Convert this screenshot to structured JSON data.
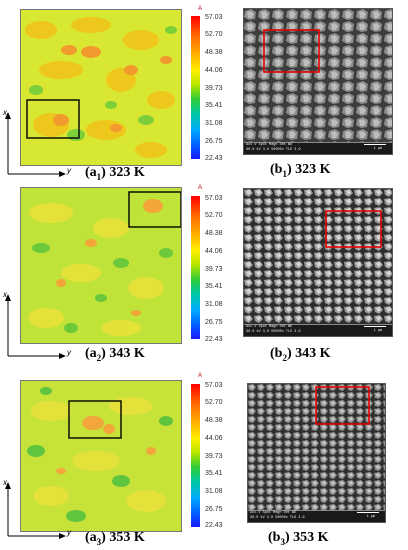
{
  "colorbar": {
    "unit": "A",
    "ticks": [
      "57.03",
      "52.70",
      "48.38",
      "44.06",
      "39.73",
      "35.41",
      "31.08",
      "26.75",
      "22.43"
    ]
  },
  "axes": {
    "x_label": "x",
    "y_label": "y"
  },
  "panels": [
    {
      "map_caption_main": "(a",
      "map_caption_sub": "1",
      "map_caption_temp": ") 323 K",
      "sem_caption_main": "(b",
      "sem_caption_sub": "1",
      "sem_caption_temp": ") 323 K",
      "sem_info_line1": "Acc.V  Spot Magn   Det   WD",
      "sem_info_line2": "30.0 kV  3.0   50000x TLD  3.9",
      "sem_scale": "1 µm"
    },
    {
      "map_caption_main": "(a",
      "map_caption_sub": "2",
      "map_caption_temp": ") 343 K",
      "sem_caption_main": "(b",
      "sem_caption_sub": "2",
      "sem_caption_temp": ") 343 K",
      "sem_info_line1": "Acc.V  Spot Magn   Det   WD",
      "sem_info_line2": "30.0 kV  3.0   50000x TLD  3.9",
      "sem_scale": "1 µm"
    },
    {
      "map_caption_main": "(a",
      "map_caption_sub": "3",
      "map_caption_temp": ") 353 K",
      "sem_caption_main": "(b",
      "sem_caption_sub": "3",
      "sem_caption_temp": ") 353 K",
      "sem_info_line1": "Acc.V  Spot Magn   Det   WD",
      "sem_info_line2": "30.0 kV  3.0   50000x TLD  3.9",
      "sem_scale": "1 µm"
    }
  ]
}
